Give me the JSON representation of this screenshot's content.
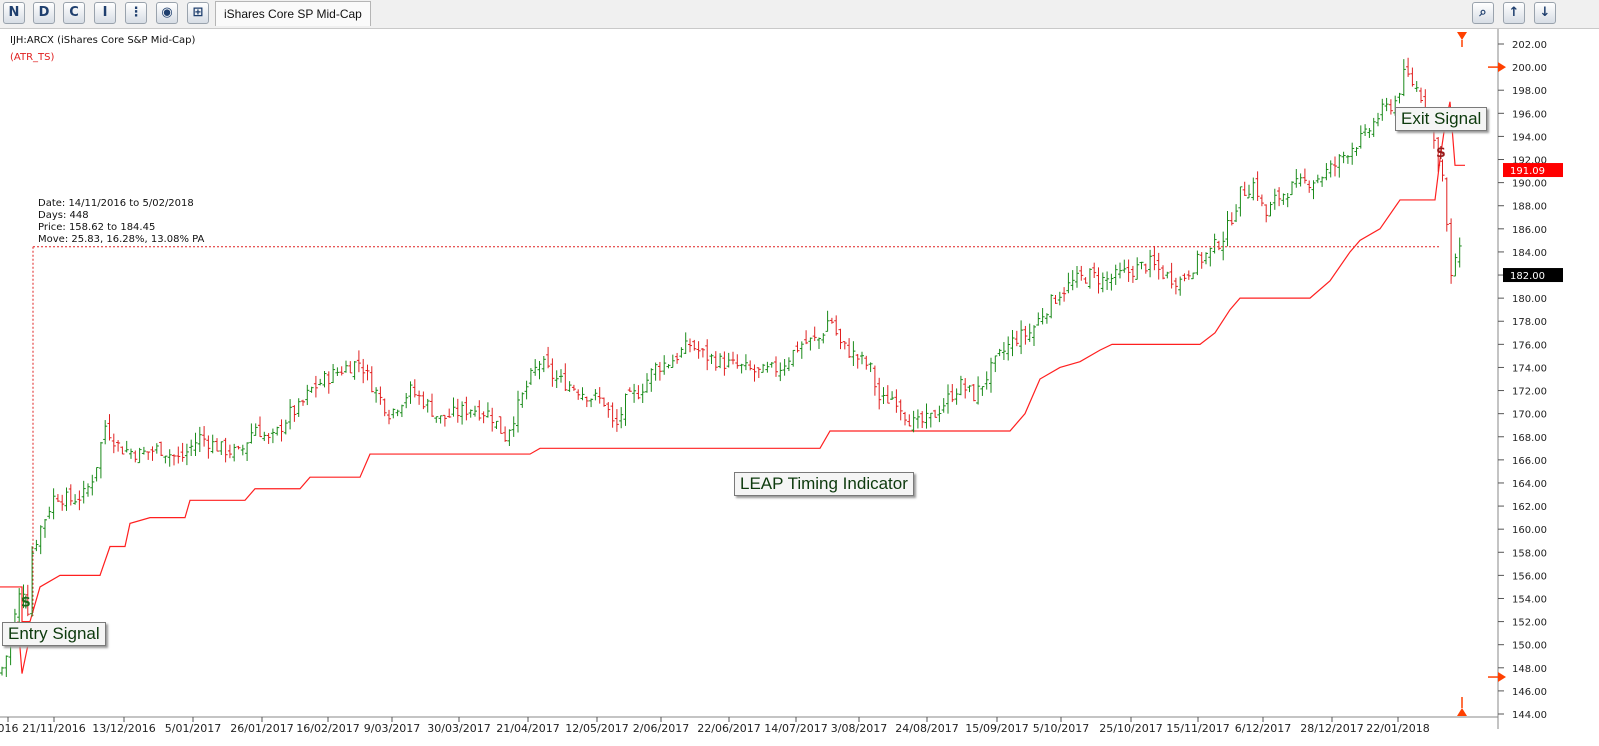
{
  "toolbar": {
    "buttons": [
      {
        "glyph": "N",
        "icon": "new-chart-icon"
      },
      {
        "glyph": "D",
        "icon": "data-icon"
      },
      {
        "glyph": "C",
        "icon": "compare-icon"
      },
      {
        "glyph": "I",
        "icon": "indicator-icon"
      },
      {
        "glyph": "⋮",
        "icon": "scan-icon"
      },
      {
        "glyph": "◉",
        "icon": "globe-icon"
      },
      {
        "glyph": "⊞",
        "icon": "layout-icon"
      }
    ],
    "tab_label": "iShares Core SP Mid-Cap",
    "right_buttons": [
      {
        "glyph": "⌕",
        "icon": "zoom-icon"
      },
      {
        "glyph": "↑",
        "icon": "arrow-up-icon"
      },
      {
        "glyph": "↓",
        "icon": "arrow-down-icon"
      }
    ]
  },
  "chart_data": {
    "type": "ohlc",
    "security": "IJH:ARCX (iShares Core S&P Mid-Cap)",
    "indicator_label": "(ATR_TS)",
    "x_tick_labels": [
      "016",
      "21/11/2016",
      "13/12/2016",
      "5/01/2017",
      "26/01/2017",
      "16/02/2017",
      "9/03/2017",
      "30/03/2017",
      "21/04/2017",
      "12/05/2017",
      "2/06/2017",
      "22/06/2017",
      "14/07/2017",
      "3/08/2017",
      "24/08/2017",
      "15/09/2017",
      "5/10/2017",
      "25/10/2017",
      "15/11/2017",
      "6/12/2017",
      "28/12/2017",
      "22/01/2018"
    ],
    "y_ticks": [
      144,
      146,
      148,
      150,
      152,
      154,
      156,
      158,
      160,
      162,
      164,
      166,
      168,
      170,
      172,
      174,
      176,
      178,
      180,
      182,
      184,
      186,
      188,
      190,
      192,
      194,
      196,
      198,
      200,
      202
    ],
    "y_tick_labels": [
      "144.00",
      "146.00",
      "148.00",
      "150.00",
      "152.00",
      "154.00",
      "156.00",
      "158.00",
      "160.00",
      "162.00",
      "164.00",
      "166.00",
      "168.00",
      "170.00",
      "172.00",
      "174.00",
      "176.00",
      "178.00",
      "180.00",
      "182.00",
      "184.00",
      "186.00",
      "188.00",
      "190.00",
      "192.00",
      "194.00",
      "196.00",
      "198.00",
      "200.00",
      "202.00"
    ],
    "ylim": [
      143.3,
      203.2
    ],
    "price_close_path": [
      [
        0,
        147.5
      ],
      [
        10,
        150
      ],
      [
        18,
        154
      ],
      [
        25,
        155
      ],
      [
        28,
        153
      ],
      [
        32,
        158
      ],
      [
        40,
        160
      ],
      [
        55,
        163
      ],
      [
        70,
        162.5
      ],
      [
        85,
        163
      ],
      [
        95,
        165
      ],
      [
        105,
        169
      ],
      [
        120,
        167
      ],
      [
        140,
        166.5
      ],
      [
        160,
        167
      ],
      [
        180,
        166
      ],
      [
        200,
        168
      ],
      [
        220,
        167
      ],
      [
        240,
        166.5
      ],
      [
        255,
        169
      ],
      [
        270,
        167.5
      ],
      [
        290,
        170
      ],
      [
        300,
        170.5
      ],
      [
        310,
        172
      ],
      [
        325,
        173
      ],
      [
        345,
        174
      ],
      [
        360,
        174.5
      ],
      [
        375,
        172
      ],
      [
        390,
        170
      ],
      [
        410,
        172
      ],
      [
        425,
        171
      ],
      [
        440,
        169.5
      ],
      [
        455,
        170
      ],
      [
        470,
        170.5
      ],
      [
        490,
        170
      ],
      [
        505,
        168
      ],
      [
        520,
        171
      ],
      [
        530,
        173
      ],
      [
        540,
        174.5
      ],
      [
        555,
        173
      ],
      [
        570,
        172.5
      ],
      [
        590,
        171.5
      ],
      [
        605,
        171
      ],
      [
        615,
        168.5
      ],
      [
        625,
        171
      ],
      [
        640,
        172
      ],
      [
        655,
        174
      ],
      [
        670,
        174.5
      ],
      [
        690,
        176
      ],
      [
        705,
        175
      ],
      [
        720,
        174.5
      ],
      [
        740,
        174
      ],
      [
        760,
        173.5
      ],
      [
        780,
        174
      ],
      [
        800,
        176
      ],
      [
        820,
        176.5
      ],
      [
        830,
        178.5
      ],
      [
        840,
        176
      ],
      [
        855,
        175
      ],
      [
        870,
        174
      ],
      [
        880,
        171
      ],
      [
        895,
        171.5
      ],
      [
        905,
        170
      ],
      [
        915,
        169
      ],
      [
        930,
        169.5
      ],
      [
        945,
        171
      ],
      [
        960,
        172.5
      ],
      [
        975,
        171.5
      ],
      [
        985,
        173
      ],
      [
        1000,
        175
      ],
      [
        1015,
        176.5
      ],
      [
        1030,
        177
      ],
      [
        1045,
        179
      ],
      [
        1060,
        180.5
      ],
      [
        1075,
        181.5
      ],
      [
        1090,
        182
      ],
      [
        1105,
        181.5
      ],
      [
        1120,
        182
      ],
      [
        1135,
        182.5
      ],
      [
        1150,
        183
      ],
      [
        1165,
        182
      ],
      [
        1180,
        181.5
      ],
      [
        1195,
        183
      ],
      [
        1210,
        184
      ],
      [
        1225,
        185.5
      ],
      [
        1240,
        189
      ],
      [
        1255,
        190
      ],
      [
        1265,
        187
      ],
      [
        1275,
        188.5
      ],
      [
        1290,
        189.5
      ],
      [
        1305,
        190
      ],
      [
        1320,
        190.5
      ],
      [
        1335,
        191.5
      ],
      [
        1350,
        193
      ],
      [
        1365,
        194
      ],
      [
        1380,
        196
      ],
      [
        1395,
        197
      ],
      [
        1405,
        199.5
      ],
      [
        1418,
        198
      ],
      [
        1428,
        196.5
      ],
      [
        1435,
        193
      ],
      [
        1442,
        191
      ],
      [
        1448,
        185
      ],
      [
        1452,
        180.5
      ],
      [
        1458,
        186
      ],
      [
        1462,
        181
      ]
    ],
    "atr_ts_path": [
      [
        0,
        155
      ],
      [
        22,
        155
      ],
      [
        22,
        152
      ],
      [
        30,
        152
      ],
      [
        40,
        155
      ],
      [
        60,
        156
      ],
      [
        100,
        156
      ],
      [
        110,
        158.5
      ],
      [
        125,
        158.5
      ],
      [
        130,
        160.5
      ],
      [
        150,
        161
      ],
      [
        185,
        161
      ],
      [
        190,
        162.5
      ],
      [
        245,
        162.5
      ],
      [
        255,
        163.5
      ],
      [
        300,
        163.5
      ],
      [
        310,
        164.5
      ],
      [
        360,
        164.5
      ],
      [
        370,
        166.5
      ],
      [
        530,
        166.5
      ],
      [
        540,
        167
      ],
      [
        820,
        167
      ],
      [
        830,
        168.5
      ],
      [
        1010,
        168.5
      ],
      [
        1025,
        170
      ],
      [
        1040,
        173
      ],
      [
        1060,
        174
      ],
      [
        1080,
        174.5
      ],
      [
        1100,
        175.5
      ],
      [
        1112,
        176
      ],
      [
        1200,
        176
      ],
      [
        1215,
        177
      ],
      [
        1230,
        179
      ],
      [
        1240,
        180
      ],
      [
        1310,
        180
      ],
      [
        1330,
        181.5
      ],
      [
        1350,
        184
      ],
      [
        1360,
        185
      ],
      [
        1380,
        186
      ],
      [
        1400,
        188.5
      ],
      [
        1435,
        188.5
      ],
      [
        1440,
        192
      ],
      [
        1445,
        195
      ],
      [
        1450,
        197
      ],
      [
        1455,
        191.5
      ],
      [
        1465,
        191.5
      ]
    ],
    "atr_ts_extra": [
      [
        10,
        150
      ],
      [
        18,
        152
      ],
      [
        22,
        147.5
      ],
      [
        28,
        150
      ]
    ],
    "measurement": {
      "date": "Date: 14/11/2016  to  5/02/2018",
      "days": "Days: 448",
      "price": "Price: 158.62  to  184.45",
      "move": "Move: 25.83,   16.28%,   13.08% PA",
      "level": 184.45
    },
    "entry_signal_label": "Entry Signal",
    "exit_signal_label": "Exit Signal",
    "indicator_note": "LEAP Timing Indicator",
    "entry_marker": "$",
    "exit_marker": "$",
    "last_price_tag": "182.00",
    "atr_tag": "191.09",
    "colors": {
      "up": "#1a8a1a",
      "down": "#e02020",
      "atr": "#ff2020",
      "axis": "#555555",
      "tag_black": "#000000",
      "tag_red": "#ff0000",
      "marker": "#ff4000"
    }
  }
}
